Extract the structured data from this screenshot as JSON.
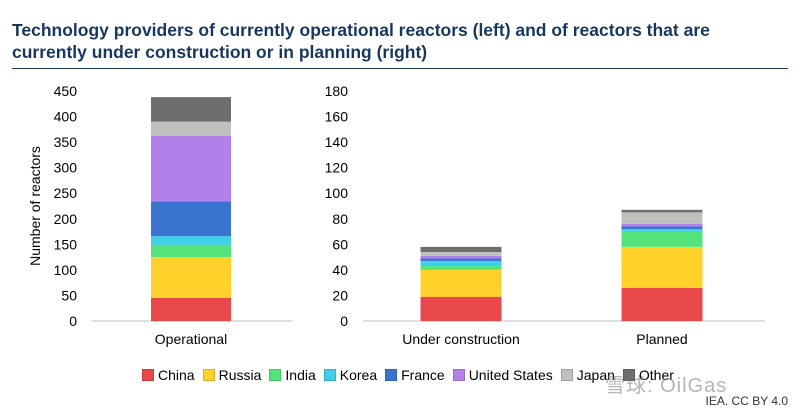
{
  "title_lines": [
    "Technology providers of currently operational reactors (left) and of reactors that are",
    "currently under construction or in planning (right)"
  ],
  "colors": {
    "China": "#e8484a",
    "Russia": "#ffd12a",
    "India": "#54e37a",
    "Korea": "#3fcfe6",
    "France": "#3b73d1",
    "United States": "#b380ea",
    "Japan": "#bfbfbf",
    "Other": "#6e6e6e"
  },
  "legend": [
    "China",
    "Russia",
    "India",
    "Korea",
    "France",
    "United States",
    "Japan",
    "Other"
  ],
  "watermark": "雪球: OilGas",
  "credit": "IEA. CC BY 4.0",
  "chart_data": [
    {
      "type": "bar",
      "stacked": true,
      "ylabel": "Number of reactors",
      "ylim": [
        0,
        450
      ],
      "yticks": [
        0,
        50,
        100,
        150,
        200,
        250,
        300,
        350,
        400,
        450
      ],
      "categories": [
        "Operational"
      ],
      "series": [
        {
          "name": "China",
          "values": [
            45
          ]
        },
        {
          "name": "Russia",
          "values": [
            80
          ]
        },
        {
          "name": "India",
          "values": [
            24
          ]
        },
        {
          "name": "Korea",
          "values": [
            17
          ]
        },
        {
          "name": "France",
          "values": [
            68
          ]
        },
        {
          "name": "United States",
          "values": [
            128
          ]
        },
        {
          "name": "Japan",
          "values": [
            28
          ]
        },
        {
          "name": "Other",
          "values": [
            48
          ]
        }
      ]
    },
    {
      "type": "bar",
      "stacked": true,
      "ylim": [
        0,
        180
      ],
      "yticks": [
        0,
        20,
        40,
        60,
        80,
        100,
        120,
        140,
        160,
        180
      ],
      "categories": [
        "Under construction",
        "Planned"
      ],
      "series": [
        {
          "name": "China",
          "values": [
            19,
            26
          ]
        },
        {
          "name": "Russia",
          "values": [
            21,
            32
          ]
        },
        {
          "name": "India",
          "values": [
            3,
            12
          ]
        },
        {
          "name": "Korea",
          "values": [
            4,
            2
          ]
        },
        {
          "name": "France",
          "values": [
            2,
            2
          ]
        },
        {
          "name": "United States",
          "values": [
            2,
            2
          ]
        },
        {
          "name": "Japan",
          "values": [
            3,
            9
          ]
        },
        {
          "name": "Other",
          "values": [
            4,
            2
          ]
        }
      ]
    }
  ]
}
